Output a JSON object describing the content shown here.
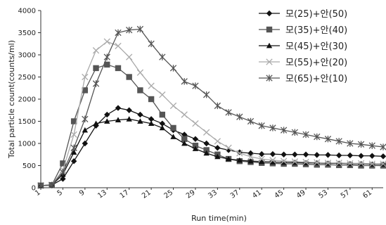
{
  "chart_data": {
    "type": "line",
    "title": "",
    "xlabel": "Run time(min)",
    "ylabel": "Total particle count(counts/ml)",
    "xlim": [
      1,
      63
    ],
    "ylim": [
      0,
      4000
    ],
    "x_ticks": [
      "1",
      "5",
      "9",
      "13",
      "17",
      "21",
      "25",
      "29",
      "33",
      "37",
      "41",
      "45",
      "49",
      "53",
      "57",
      "61"
    ],
    "y_ticks": [
      "0",
      "500",
      "1000",
      "1500",
      "2000",
      "2500",
      "3000",
      "3500",
      "4000"
    ],
    "grid": false,
    "legend_position": "top-right",
    "x": [
      1,
      3,
      5,
      7,
      9,
      11,
      13,
      15,
      17,
      19,
      21,
      23,
      25,
      27,
      29,
      31,
      33,
      35,
      37,
      39,
      41,
      43,
      45,
      47,
      49,
      51,
      53,
      55,
      57,
      59,
      61,
      63
    ],
    "series": [
      {
        "name": "모(25)+안(50)",
        "marker": "diamond",
        "color": "#111111",
        "values": [
          50,
          60,
          200,
          600,
          1000,
          1400,
          1650,
          1800,
          1750,
          1650,
          1550,
          1450,
          1300,
          1200,
          1100,
          1000,
          900,
          850,
          800,
          780,
          760,
          760,
          750,
          750,
          750,
          740,
          740,
          730,
          730,
          720,
          720,
          710
        ]
      },
      {
        "name": "모(35)+안(40)",
        "marker": "square",
        "color": "#555555",
        "values": [
          50,
          60,
          550,
          1500,
          2200,
          2700,
          2780,
          2700,
          2500,
          2200,
          2000,
          1650,
          1350,
          1100,
          950,
          850,
          750,
          650,
          600,
          580,
          560,
          550,
          540,
          540,
          530,
          520,
          520,
          510,
          510,
          500,
          500,
          500
        ]
      },
      {
        "name": "모(45)+안(30)",
        "marker": "triangle",
        "color": "#111111",
        "values": [
          50,
          60,
          300,
          800,
          1300,
          1450,
          1500,
          1530,
          1550,
          1500,
          1450,
          1350,
          1150,
          1000,
          880,
          780,
          700,
          650,
          620,
          600,
          590,
          580,
          570,
          570,
          560,
          560,
          550,
          550,
          540,
          540,
          530,
          530
        ]
      },
      {
        "name": "모(55)+안(20)",
        "marker": "x",
        "color": "#aaaaaa",
        "values": [
          50,
          60,
          400,
          1200,
          2500,
          3100,
          3300,
          3200,
          2950,
          2600,
          2300,
          2100,
          1850,
          1650,
          1450,
          1250,
          1050,
          900,
          780,
          700,
          650,
          620,
          600,
          590,
          580,
          570,
          560,
          560,
          550,
          550,
          540,
          540
        ]
      },
      {
        "name": "모(65)+안(10)",
        "marker": "star",
        "color": "#555555",
        "values": [
          50,
          60,
          350,
          900,
          1550,
          2350,
          2950,
          3500,
          3560,
          3580,
          3250,
          2950,
          2700,
          2400,
          2300,
          2100,
          1850,
          1700,
          1600,
          1500,
          1400,
          1350,
          1300,
          1250,
          1200,
          1150,
          1100,
          1050,
          1000,
          980,
          950,
          920
        ]
      }
    ]
  }
}
